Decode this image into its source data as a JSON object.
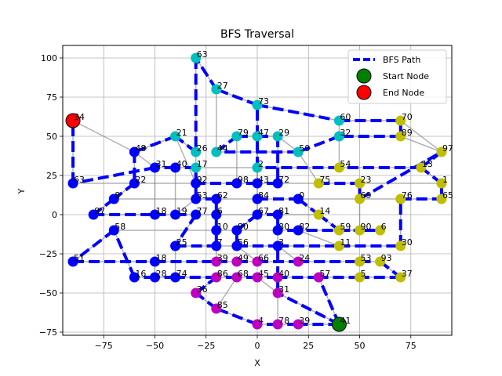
{
  "chart_data": {
    "type": "scatter",
    "title": "BFS Traversal",
    "xlabel": "X",
    "ylabel": "Y",
    "xlim": [
      -95,
      95
    ],
    "ylim": [
      -77,
      108
    ],
    "xticks": [
      -75,
      -50,
      -25,
      0,
      25,
      50,
      75
    ],
    "yticks": [
      -75,
      -50,
      -25,
      0,
      25,
      50,
      75,
      100
    ],
    "grid": true,
    "legend_position": "top-right",
    "legend": [
      {
        "label": "BFS Path",
        "kind": "line",
        "color": "#0000ff"
      },
      {
        "label": "Start Node",
        "kind": "marker",
        "color": "#008000"
      },
      {
        "label": "End Node",
        "kind": "marker",
        "color": "#ff0000"
      }
    ],
    "colors": {
      "grid": "#b0b0b0",
      "edge": "#808080",
      "path": "#0000ff",
      "start": "#008000",
      "end": "#ff0000",
      "node_blue": "#0000ff",
      "node_cyan": "#00bfbf",
      "node_yellow": "#bfbf00",
      "node_magenta": "#bf00bf"
    },
    "start_node": "41",
    "end_node": "34",
    "nodes": [
      {
        "id": "63",
        "x": -30,
        "y": 100,
        "group": "cyan"
      },
      {
        "id": "27",
        "x": -20,
        "y": 80,
        "group": "cyan"
      },
      {
        "id": "73",
        "x": 0,
        "y": 70,
        "group": "cyan"
      },
      {
        "id": "34",
        "x": -90,
        "y": 60,
        "group": "end"
      },
      {
        "id": "60",
        "x": 40,
        "y": 60,
        "group": "cyan"
      },
      {
        "id": "70",
        "x": 70,
        "y": 60,
        "group": "yellow"
      },
      {
        "id": "21",
        "x": -40,
        "y": 50,
        "group": "cyan"
      },
      {
        "id": "79",
        "x": -10,
        "y": 50,
        "group": "cyan"
      },
      {
        "id": "47",
        "x": 0,
        "y": 50,
        "group": "cyan"
      },
      {
        "id": "29",
        "x": 10,
        "y": 50,
        "group": "cyan"
      },
      {
        "id": "32",
        "x": 40,
        "y": 50,
        "group": "cyan"
      },
      {
        "id": "89",
        "x": 70,
        "y": 50,
        "group": "yellow"
      },
      {
        "id": "48",
        "x": -60,
        "y": 40,
        "group": "blue"
      },
      {
        "id": "26",
        "x": -30,
        "y": 40,
        "group": "cyan"
      },
      {
        "id": "44",
        "x": -20,
        "y": 40,
        "group": "cyan"
      },
      {
        "id": "50",
        "x": 20,
        "y": 40,
        "group": "cyan"
      },
      {
        "id": "97",
        "x": 90,
        "y": 40,
        "group": "yellow"
      },
      {
        "id": "31",
        "x": -50,
        "y": 30,
        "group": "blue"
      },
      {
        "id": "40",
        "x": -40,
        "y": 30,
        "group": "blue"
      },
      {
        "id": "17",
        "x": -30,
        "y": 30,
        "group": "cyan"
      },
      {
        "id": "2",
        "x": 0,
        "y": 30,
        "group": "cyan"
      },
      {
        "id": "54",
        "x": 40,
        "y": 30,
        "group": "yellow"
      },
      {
        "id": "13",
        "x": 80,
        "y": 30,
        "group": "yellow"
      },
      {
        "id": "63b",
        "label": "63",
        "x": -90,
        "y": 20,
        "group": "blue"
      },
      {
        "id": "22",
        "x": -60,
        "y": 20,
        "group": "blue"
      },
      {
        "id": "92",
        "x": -30,
        "y": 20,
        "group": "blue"
      },
      {
        "id": "98",
        "x": -10,
        "y": 20,
        "group": "blue"
      },
      {
        "id": "43",
        "x": 0,
        "y": 20,
        "group": "blue"
      },
      {
        "id": "72",
        "x": 10,
        "y": 20,
        "group": "blue"
      },
      {
        "id": "75",
        "x": 30,
        "y": 20,
        "group": "yellow"
      },
      {
        "id": "23",
        "x": 50,
        "y": 20,
        "group": "yellow"
      },
      {
        "id": "1",
        "x": 90,
        "y": 20,
        "group": "yellow"
      },
      {
        "id": "8",
        "x": -70,
        "y": 10,
        "group": "blue"
      },
      {
        "id": "53",
        "x": -30,
        "y": 10,
        "group": "blue"
      },
      {
        "id": "62",
        "x": -20,
        "y": 10,
        "group": "blue"
      },
      {
        "id": "84",
        "x": 0,
        "y": 10,
        "group": "blue"
      },
      {
        "id": "0",
        "x": 20,
        "y": 10,
        "group": "blue"
      },
      {
        "id": "69",
        "x": 50,
        "y": 10,
        "group": "yellow"
      },
      {
        "id": "76",
        "x": 70,
        "y": 10,
        "group": "yellow"
      },
      {
        "id": "65",
        "x": 90,
        "y": 10,
        "group": "yellow"
      },
      {
        "id": "87",
        "x": -80,
        "y": 0,
        "group": "blue"
      },
      {
        "id": "18",
        "x": -50,
        "y": 0,
        "group": "blue"
      },
      {
        "id": "19",
        "x": -40,
        "y": 0,
        "group": "blue"
      },
      {
        "id": "77",
        "x": -30,
        "y": 0,
        "group": "blue"
      },
      {
        "id": "6",
        "x": -20,
        "y": 0,
        "group": "blue"
      },
      {
        "id": "67",
        "x": 0,
        "y": 0,
        "group": "blue"
      },
      {
        "id": "81",
        "x": 10,
        "y": 0,
        "group": "blue"
      },
      {
        "id": "14",
        "x": 30,
        "y": 0,
        "group": "yellow"
      },
      {
        "id": "58",
        "x": -70,
        "y": -10,
        "group": "blue"
      },
      {
        "id": "10",
        "x": -20,
        "y": -10,
        "group": "blue"
      },
      {
        "id": "80",
        "x": -10,
        "y": -10,
        "group": "blue"
      },
      {
        "id": "80b",
        "label": "80",
        "x": 10,
        "y": -10,
        "group": "blue"
      },
      {
        "id": "82",
        "x": 20,
        "y": -10,
        "group": "blue"
      },
      {
        "id": "59",
        "x": 40,
        "y": -10,
        "group": "yellow"
      },
      {
        "id": "90",
        "x": 50,
        "y": -10,
        "group": "yellow"
      },
      {
        "id": "6b",
        "label": "6",
        "x": 60,
        "y": -10,
        "group": "yellow"
      },
      {
        "id": "25",
        "x": -40,
        "y": -20,
        "group": "blue"
      },
      {
        "id": "7",
        "x": -20,
        "y": -20,
        "group": "blue"
      },
      {
        "id": "56",
        "x": -10,
        "y": -20,
        "group": "blue"
      },
      {
        "id": "3",
        "x": 10,
        "y": -20,
        "group": "blue"
      },
      {
        "id": "11",
        "x": 40,
        "y": -20,
        "group": "yellow"
      },
      {
        "id": "30",
        "x": 70,
        "y": -20,
        "group": "yellow"
      },
      {
        "id": "51",
        "x": -90,
        "y": -30,
        "group": "blue"
      },
      {
        "id": "18b",
        "label": "18",
        "x": -50,
        "y": -30,
        "group": "blue"
      },
      {
        "id": "39",
        "x": -20,
        "y": -30,
        "group": "magenta"
      },
      {
        "id": "49",
        "x": -10,
        "y": -30,
        "group": "magenta"
      },
      {
        "id": "66",
        "x": 0,
        "y": -30,
        "group": "magenta"
      },
      {
        "id": "24",
        "x": 20,
        "y": -30,
        "group": "magenta"
      },
      {
        "id": "53b",
        "label": "53",
        "x": 50,
        "y": -30,
        "group": "yellow"
      },
      {
        "id": "93",
        "x": 60,
        "y": -30,
        "group": "yellow"
      },
      {
        "id": "16",
        "x": -60,
        "y": -40,
        "group": "blue"
      },
      {
        "id": "28",
        "x": -50,
        "y": -40,
        "group": "blue"
      },
      {
        "id": "74",
        "x": -40,
        "y": -40,
        "group": "blue"
      },
      {
        "id": "86",
        "x": -20,
        "y": -40,
        "group": "magenta"
      },
      {
        "id": "68",
        "x": -10,
        "y": -40,
        "group": "magenta"
      },
      {
        "id": "45",
        "x": 0,
        "y": -40,
        "group": "magenta"
      },
      {
        "id": "40b",
        "label": "40",
        "x": 10,
        "y": -40,
        "group": "magenta"
      },
      {
        "id": "57",
        "x": 30,
        "y": -40,
        "group": "magenta"
      },
      {
        "id": "5",
        "x": 50,
        "y": -40,
        "group": "yellow"
      },
      {
        "id": "37",
        "x": 70,
        "y": -40,
        "group": "yellow"
      },
      {
        "id": "36",
        "x": -30,
        "y": -50,
        "group": "magenta"
      },
      {
        "id": "31b",
        "label": "31",
        "x": 10,
        "y": -50,
        "group": "magenta"
      },
      {
        "id": "85",
        "x": -20,
        "y": -60,
        "group": "magenta"
      },
      {
        "id": "4",
        "x": 0,
        "y": -70,
        "group": "magenta"
      },
      {
        "id": "78",
        "x": 10,
        "y": -70,
        "group": "magenta"
      },
      {
        "id": "39b",
        "label": "39",
        "x": 20,
        "y": -70,
        "group": "magenta"
      },
      {
        "id": "41",
        "x": 40,
        "y": -70,
        "group": "start"
      }
    ],
    "edges": [
      [
        "63",
        "27"
      ],
      [
        "63",
        "26"
      ],
      [
        "27",
        "73"
      ],
      [
        "27",
        "44"
      ],
      [
        "73",
        "60"
      ],
      [
        "73",
        "2"
      ],
      [
        "60",
        "70"
      ],
      [
        "60",
        "32"
      ],
      [
        "21",
        "48"
      ],
      [
        "21",
        "26"
      ],
      [
        "79",
        "47"
      ],
      [
        "47",
        "29"
      ],
      [
        "29",
        "50"
      ],
      [
        "32",
        "89"
      ],
      [
        "89",
        "97"
      ],
      [
        "97",
        "13"
      ],
      [
        "48",
        "31"
      ],
      [
        "31",
        "40"
      ],
      [
        "40",
        "17"
      ],
      [
        "17",
        "2"
      ],
      [
        "2",
        "54"
      ],
      [
        "54",
        "13"
      ],
      [
        "13",
        "1"
      ],
      [
        "1",
        "65"
      ],
      [
        "63b",
        "22"
      ],
      [
        "22",
        "92"
      ],
      [
        "92",
        "98"
      ],
      [
        "98",
        "43"
      ],
      [
        "43",
        "72"
      ],
      [
        "72",
        "75"
      ],
      [
        "75",
        "23"
      ],
      [
        "23",
        "1"
      ],
      [
        "8",
        "53"
      ],
      [
        "53",
        "62"
      ],
      [
        "62",
        "84"
      ],
      [
        "84",
        "0"
      ],
      [
        "0",
        "69"
      ],
      [
        "69",
        "76"
      ],
      [
        "76",
        "65"
      ],
      [
        "87",
        "18"
      ],
      [
        "18",
        "19"
      ],
      [
        "19",
        "77"
      ],
      [
        "77",
        "6"
      ],
      [
        "6",
        "67"
      ],
      [
        "67",
        "81"
      ],
      [
        "81",
        "14"
      ],
      [
        "58",
        "10"
      ],
      [
        "10",
        "80"
      ],
      [
        "80",
        "80b"
      ],
      [
        "80b",
        "82"
      ],
      [
        "82",
        "59"
      ],
      [
        "59",
        "90"
      ],
      [
        "90",
        "6b"
      ],
      [
        "25",
        "7"
      ],
      [
        "7",
        "56"
      ],
      [
        "56",
        "3"
      ],
      [
        "3",
        "11"
      ],
      [
        "11",
        "30"
      ],
      [
        "51",
        "18b"
      ],
      [
        "18b",
        "39"
      ],
      [
        "39",
        "49"
      ],
      [
        "49",
        "66"
      ],
      [
        "66",
        "24"
      ],
      [
        "24",
        "53b"
      ],
      [
        "53b",
        "93"
      ],
      [
        "16",
        "28"
      ],
      [
        "28",
        "74"
      ],
      [
        "74",
        "86"
      ],
      [
        "86",
        "68"
      ],
      [
        "68",
        "45"
      ],
      [
        "45",
        "40b"
      ],
      [
        "40b",
        "57"
      ],
      [
        "57",
        "5"
      ],
      [
        "5",
        "37"
      ],
      [
        "36",
        "85"
      ],
      [
        "85",
        "4"
      ],
      [
        "4",
        "78"
      ],
      [
        "78",
        "39b"
      ],
      [
        "39b",
        "41"
      ],
      [
        "31b",
        "41"
      ],
      [
        "34",
        "48"
      ],
      [
        "34",
        "63b"
      ],
      [
        "44",
        "50"
      ],
      [
        "26",
        "17"
      ],
      [
        "50",
        "75"
      ],
      [
        "32",
        "54"
      ],
      [
        "70",
        "97"
      ],
      [
        "8",
        "87"
      ],
      [
        "58",
        "51"
      ],
      [
        "58",
        "16"
      ],
      [
        "22",
        "8"
      ],
      [
        "53",
        "19"
      ],
      [
        "62",
        "6"
      ],
      [
        "84",
        "67"
      ],
      [
        "0",
        "14"
      ],
      [
        "69",
        "90"
      ],
      [
        "76",
        "30"
      ],
      [
        "14",
        "59"
      ],
      [
        "82",
        "11"
      ],
      [
        "3",
        "24"
      ],
      [
        "56",
        "66"
      ],
      [
        "7",
        "39"
      ],
      [
        "25",
        "74"
      ],
      [
        "18b",
        "28"
      ],
      [
        "86",
        "36"
      ],
      [
        "68",
        "85"
      ],
      [
        "45",
        "31b"
      ],
      [
        "40b",
        "78"
      ],
      [
        "57",
        "41"
      ],
      [
        "93",
        "37"
      ],
      [
        "21",
        "92"
      ],
      [
        "79",
        "98"
      ],
      [
        "47",
        "43"
      ],
      [
        "29",
        "72"
      ],
      [
        "2",
        "84"
      ],
      [
        "17",
        "53"
      ],
      [
        "40",
        "19"
      ],
      [
        "31",
        "18"
      ],
      [
        "48",
        "22"
      ],
      [
        "10",
        "7"
      ],
      [
        "80",
        "56"
      ],
      [
        "80b",
        "3"
      ],
      [
        "67",
        "80"
      ],
      [
        "81",
        "80b"
      ],
      [
        "6",
        "10"
      ],
      [
        "77",
        "25"
      ]
    ],
    "bfs_path": [
      [
        "41",
        "39b"
      ],
      [
        "41",
        "57"
      ],
      [
        "41",
        "31b"
      ],
      [
        "39b",
        "78"
      ],
      [
        "78",
        "4"
      ],
      [
        "4",
        "85"
      ],
      [
        "85",
        "36"
      ],
      [
        "36",
        "86"
      ],
      [
        "57",
        "40b"
      ],
      [
        "40b",
        "45"
      ],
      [
        "45",
        "68"
      ],
      [
        "68",
        "86"
      ],
      [
        "86",
        "74"
      ],
      [
        "74",
        "28"
      ],
      [
        "28",
        "16"
      ],
      [
        "16",
        "58"
      ],
      [
        "58",
        "51"
      ],
      [
        "51",
        "18b"
      ],
      [
        "18b",
        "39"
      ],
      [
        "39",
        "49"
      ],
      [
        "49",
        "66"
      ],
      [
        "66",
        "24"
      ],
      [
        "24",
        "53b"
      ],
      [
        "53b",
        "93"
      ],
      [
        "93",
        "37"
      ],
      [
        "37",
        "5"
      ],
      [
        "5",
        "57"
      ],
      [
        "31b",
        "3"
      ],
      [
        "3",
        "11"
      ],
      [
        "11",
        "30"
      ],
      [
        "30",
        "76"
      ],
      [
        "76",
        "65"
      ],
      [
        "65",
        "1"
      ],
      [
        "1",
        "13"
      ],
      [
        "13",
        "54"
      ],
      [
        "54",
        "2"
      ],
      [
        "2",
        "73"
      ],
      [
        "73",
        "27"
      ],
      [
        "27",
        "63"
      ],
      [
        "63",
        "26"
      ],
      [
        "26",
        "21"
      ],
      [
        "21",
        "48"
      ],
      [
        "48",
        "22"
      ],
      [
        "22",
        "8"
      ],
      [
        "8",
        "87"
      ],
      [
        "87",
        "18"
      ],
      [
        "18",
        "19"
      ],
      [
        "19",
        "77"
      ],
      [
        "77",
        "25"
      ],
      [
        "25",
        "7"
      ],
      [
        "7",
        "10"
      ],
      [
        "10",
        "6"
      ],
      [
        "6",
        "62"
      ],
      [
        "62",
        "53"
      ],
      [
        "53",
        "17"
      ],
      [
        "17",
        "40"
      ],
      [
        "40",
        "31"
      ],
      [
        "31",
        "63b"
      ],
      [
        "63b",
        "34"
      ],
      [
        "73",
        "60"
      ],
      [
        "60",
        "70"
      ],
      [
        "70",
        "89"
      ],
      [
        "89",
        "32"
      ],
      [
        "32",
        "50"
      ],
      [
        "50",
        "44"
      ],
      [
        "44",
        "79"
      ],
      [
        "79",
        "47"
      ],
      [
        "47",
        "29"
      ],
      [
        "29",
        "72"
      ],
      [
        "72",
        "43"
      ],
      [
        "43",
        "98"
      ],
      [
        "98",
        "92"
      ],
      [
        "84",
        "0"
      ],
      [
        "0",
        "14"
      ],
      [
        "14",
        "59"
      ],
      [
        "59",
        "90"
      ],
      [
        "90",
        "6b"
      ],
      [
        "6b",
        "82"
      ],
      [
        "82",
        "80b"
      ],
      [
        "80b",
        "81"
      ],
      [
        "81",
        "67"
      ],
      [
        "67",
        "80"
      ],
      [
        "80",
        "56"
      ],
      [
        "56",
        "3"
      ],
      [
        "75",
        "23"
      ],
      [
        "23",
        "69"
      ],
      [
        "69",
        "97"
      ],
      [
        "97",
        "13"
      ]
    ]
  }
}
